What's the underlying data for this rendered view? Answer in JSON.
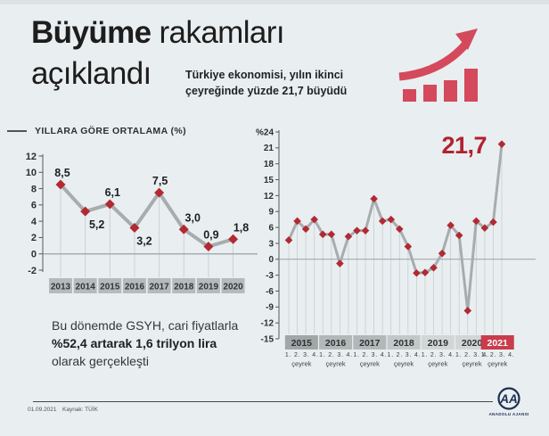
{
  "colors": {
    "background": "#e9eef1",
    "ink": "#1d1d1b",
    "accent_red": "#d4495b",
    "point_red": "#b12a32",
    "highlight_red": "#b2222e",
    "line_gray": "#a7acae",
    "grid_gray": "#caced1",
    "zero_gray": "#9ba1a4",
    "axis_gray": "#56595c",
    "badge_gray": "#b6baba",
    "navy": "#1d2f52"
  },
  "header": {
    "title_bold": "Büyüme",
    "title_rest": "rakamları",
    "title_line2": "açıklandı",
    "subtitle": "Türkiye ekonomisi, yılın ikinci çeyreğinde yüzde 21,7 büyüdü",
    "icon": "growth-bars-arrow-icon"
  },
  "gdp_note": {
    "normal1": "Bu dönemde GSYH, cari fiyatlarla ",
    "bold": "%52,4 artarak 1,6 trilyon lira",
    "normal2": " olarak gerçekleşti"
  },
  "footer": {
    "date": "01.09.2021",
    "source": "Kaynak: TÜİK",
    "logo": "AA",
    "agency": "ANADOLU AJANSI"
  },
  "chart_data": [
    {
      "id": "annual",
      "type": "line",
      "title": "YILLARA GÖRE ORTALAMA (%)",
      "categories": [
        "2013",
        "2014",
        "2015",
        "2016",
        "2017",
        "2018",
        "2019",
        "2020"
      ],
      "values": [
        8.5,
        5.2,
        6.1,
        3.2,
        7.5,
        3.0,
        0.9,
        1.8
      ],
      "point_labels": [
        "8,5",
        "5,2",
        "6,1",
        "3,2",
        "7,5",
        "3,0",
        "0,9",
        "1,8"
      ],
      "label_side": [
        "above",
        "below",
        "above",
        "below",
        "above",
        "above",
        "above",
        "above"
      ],
      "label_dx": [
        2,
        13,
        3,
        11,
        1,
        10,
        3,
        9
      ],
      "ylim": [
        -2,
        12
      ],
      "yticks": [
        12,
        10,
        8,
        6,
        4,
        2,
        0,
        -2
      ],
      "grid": "vertical-per-point",
      "legend": "none",
      "zero_line": true,
      "line_color": "#a7acae",
      "point_color": "#b12a32",
      "badge_color": "#b6baba",
      "badge_text_color": "#323539"
    },
    {
      "id": "quarterly",
      "type": "line",
      "title": "",
      "years": [
        {
          "label": "2015",
          "badge_color": "#a2a6a6",
          "badge_text_color": "#2f3235",
          "values": [
            3.6,
            7.2,
            5.7,
            7.5
          ]
        },
        {
          "label": "2016",
          "badge_color": "#b3b7b7",
          "badge_text_color": "#2f3235",
          "values": [
            4.7,
            4.7,
            -0.8,
            4.3
          ]
        },
        {
          "label": "2017",
          "badge_color": "#b3b7b7",
          "badge_text_color": "#2f3235",
          "values": [
            5.4,
            5.4,
            11.4,
            7.2
          ]
        },
        {
          "label": "2018",
          "badge_color": "#c3c7c7",
          "badge_text_color": "#2f3235",
          "values": [
            7.5,
            5.7,
            2.4,
            -2.6
          ]
        },
        {
          "label": "2019",
          "badge_color": "#d3d6d6",
          "badge_text_color": "#2f3235",
          "values": [
            -2.5,
            -1.6,
            1.1,
            6.4
          ]
        },
        {
          "label": "2020",
          "badge_color": "#d3d6d6",
          "badge_text_color": "#2f3235",
          "values": [
            4.5,
            -9.7,
            7.2,
            5.9
          ]
        },
        {
          "label": "2021",
          "badge_color": "#c93c4b",
          "badge_text_color": "#ffffff",
          "values": [
            7.0,
            21.7
          ]
        }
      ],
      "quarter_label": "1. 2. 3. 4.",
      "quarter_sub": "çeyrek",
      "ylim": [
        -15,
        24
      ],
      "ytick_labels": [
        "%24",
        "21",
        "18",
        "15",
        "12",
        "9",
        "6",
        "3",
        "0",
        "-3",
        "-6",
        "-9",
        "-12",
        "-15"
      ],
      "ytick_values": [
        24,
        21,
        18,
        15,
        12,
        9,
        6,
        3,
        0,
        -3,
        -6,
        -9,
        -12,
        -15
      ],
      "grid": "vertical-per-point",
      "legend": "none",
      "zero_line": true,
      "highlight": {
        "text": "21,7",
        "color": "#b2222e"
      },
      "line_color": "#a7acae",
      "point_color": "#b12a32"
    }
  ]
}
